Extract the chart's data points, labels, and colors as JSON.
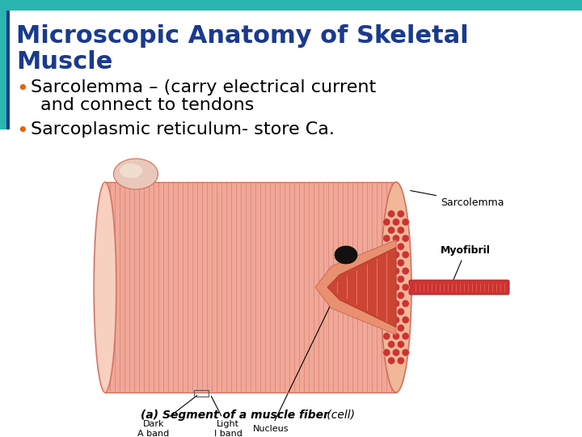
{
  "title_line1": "Microscopic Anatomy of Skeletal",
  "title_line2": "Muscle",
  "title_color": "#1a3a8f",
  "title_fontsize": 22,
  "bullet_color": "#e8620a",
  "bullet1_line1": "Sarcolemma – (carry electrical current",
  "bullet1_line2": "and connect to tendons",
  "bullet2": "Sarcoplasmic reticulum- store Ca.",
  "bullet_fontsize": 16,
  "bg_color": "#ffffff",
  "accent_teal": "#2ab5b0",
  "accent_navy": "#1a3a8f",
  "image_caption_bold": "(a) Segment of a muscle fiber",
  "image_caption_normal": " (cell)",
  "caption_fontsize": 10,
  "label_sarcolemma": "Sarcolemma",
  "label_myofibril": "Myofibril",
  "label_nucleus": "Nucleus",
  "label_fontsize": 8,
  "cyl_main": "#f0a898",
  "cyl_stripe": "#d07060",
  "cyl_light": "#f8d0c0",
  "cyl_end_face": "#e89880",
  "hex_color": "#cc3333",
  "nucleus_color": "#111111",
  "myofib_color": "#cc3333"
}
